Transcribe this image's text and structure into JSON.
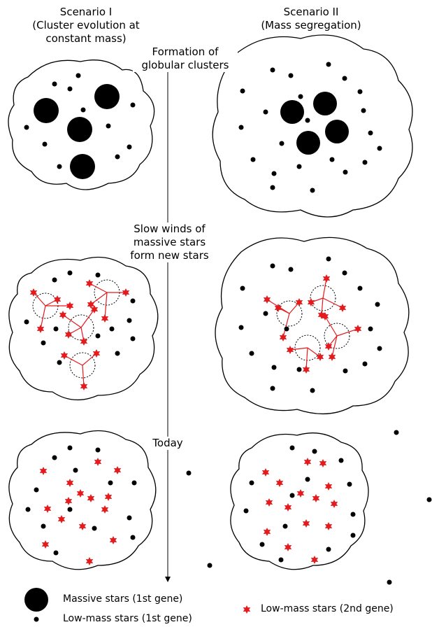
{
  "titles": {
    "scenario1": [
      "Scenario I",
      "(Cluster evolution at",
      "constant mass)"
    ],
    "scenario2": [
      "Scenario II",
      "(Mass segregation)"
    ]
  },
  "stages": {
    "formation": [
      "Formation of",
      "globular clusters"
    ],
    "winds": [
      "Slow winds of",
      "massive stars",
      "form new stars"
    ],
    "today": "Today"
  },
  "legend": {
    "massive": "Massive stars (1st gene)",
    "lowmass1": "Low-mass stars (1st gene)",
    "lowmass2": "Low-mass stars (2nd gene)"
  },
  "colors": {
    "first_generation": "#000000",
    "second_generation": "#e41a1c"
  }
}
